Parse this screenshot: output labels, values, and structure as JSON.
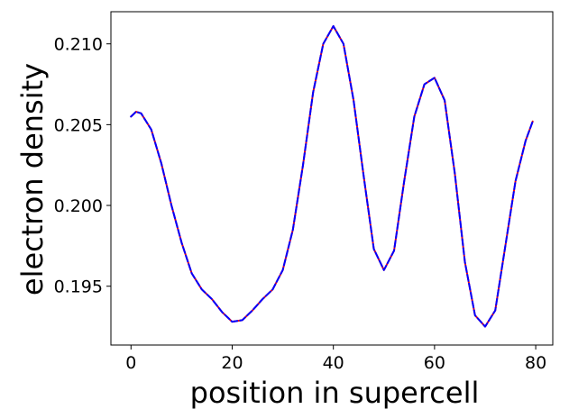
{
  "chart_data": {
    "type": "line",
    "title": "",
    "xlabel": "position in supercell",
    "ylabel": "electron density",
    "xlim": [
      -3.97,
      83.37
    ],
    "ylim": [
      0.19136,
      0.21199
    ],
    "x_ticks": [
      0,
      20,
      40,
      60,
      80
    ],
    "x_tick_labels": [
      "0",
      "20",
      "40",
      "60",
      "80"
    ],
    "y_ticks": [
      0.195,
      0.2,
      0.205,
      0.21
    ],
    "y_tick_labels": [
      "0.195",
      "0.200",
      "0.205",
      "0.210"
    ],
    "grid": false,
    "legend": "none",
    "series": [
      {
        "color": "#ff0000",
        "style": "solid",
        "x": [
          0,
          1,
          2,
          4,
          6,
          8,
          10,
          12,
          14,
          16,
          18,
          20,
          22,
          24,
          26,
          28,
          30,
          32,
          34,
          36,
          38,
          40,
          42,
          44,
          46,
          48,
          50,
          52,
          54,
          56,
          58,
          60,
          62,
          64,
          66,
          68,
          70,
          72,
          74,
          76,
          78,
          79.4
        ],
        "y": [
          0.2055,
          0.2058,
          0.2057,
          0.2047,
          0.2026,
          0.2,
          0.1977,
          0.1958,
          0.1948,
          0.1942,
          0.1934,
          0.1928,
          0.1929,
          0.1935,
          0.1942,
          0.1948,
          0.196,
          0.1985,
          0.2025,
          0.207,
          0.21,
          0.2111,
          0.21,
          0.2065,
          0.2018,
          0.1973,
          0.196,
          0.1972,
          0.2015,
          0.2055,
          0.2075,
          0.2079,
          0.2065,
          0.202,
          0.1965,
          0.1932,
          0.1925,
          0.1935,
          0.1975,
          0.2015,
          0.204,
          0.2052
        ]
      },
      {
        "color": "#0000ff",
        "style": "dashed",
        "x": [
          0,
          1,
          2,
          4,
          6,
          8,
          10,
          12,
          14,
          16,
          18,
          20,
          22,
          24,
          26,
          28,
          30,
          32,
          34,
          36,
          38,
          40,
          42,
          44,
          46,
          48,
          50,
          52,
          54,
          56,
          58,
          60,
          62,
          64,
          66,
          68,
          70,
          72,
          74,
          76,
          78,
          79.4
        ],
        "y": [
          0.2055,
          0.2058,
          0.2057,
          0.2047,
          0.2026,
          0.2,
          0.1977,
          0.1958,
          0.1948,
          0.1942,
          0.1934,
          0.1928,
          0.1929,
          0.1935,
          0.1942,
          0.1948,
          0.196,
          0.1985,
          0.2025,
          0.207,
          0.21,
          0.2111,
          0.21,
          0.2065,
          0.2018,
          0.1973,
          0.196,
          0.1972,
          0.2015,
          0.2055,
          0.2075,
          0.2079,
          0.2065,
          0.202,
          0.1965,
          0.1932,
          0.1925,
          0.1935,
          0.1975,
          0.2015,
          0.204,
          0.2052
        ]
      }
    ]
  }
}
